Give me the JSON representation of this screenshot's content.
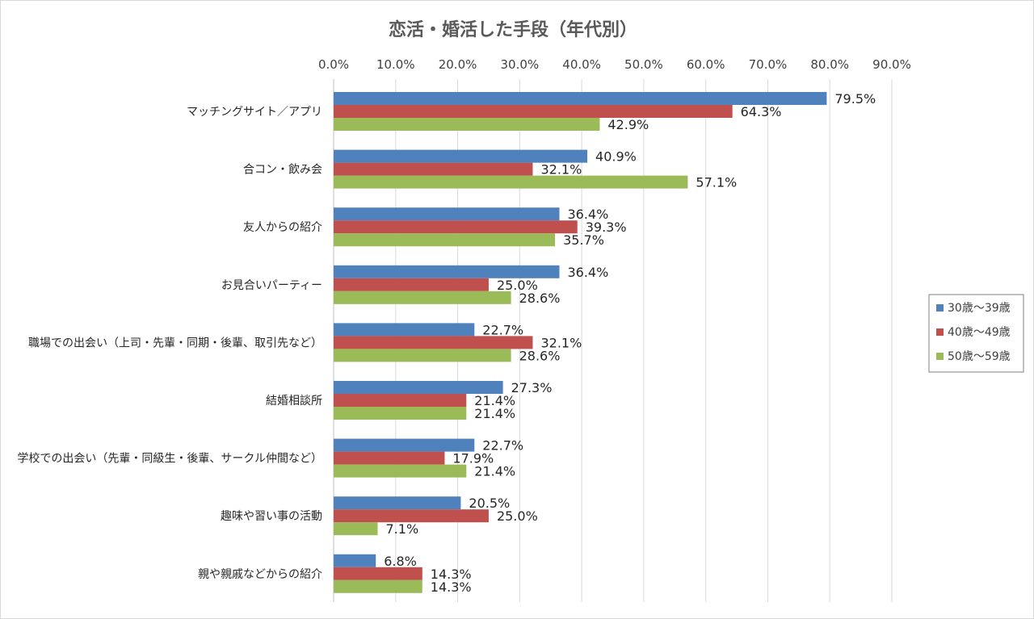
{
  "chart_data": {
    "type": "bar",
    "orientation": "horizontal",
    "title": "恋活・婚活した手段（年代別）",
    "xlabel": "",
    "ylabel": "",
    "xlim": [
      0,
      90
    ],
    "ticks": [
      "0.0%",
      "10.0%",
      "20.0%",
      "30.0%",
      "40.0%",
      "50.0%",
      "60.0%",
      "70.0%",
      "80.0%",
      "90.0%"
    ],
    "grid": "vertical",
    "legend_position": "right",
    "categories": [
      "マッチングサイト／アプリ",
      "合コン・飲み会",
      "友人からの紹介",
      "お見合いパーティー",
      "職場での出会い（上司・先輩・同期・後輩、取引先など）",
      "結婚相談所",
      "学校での出会い（先輩・同級生・後輩、サークル仲間など）",
      "趣味や習い事の活動",
      "親や親戚などからの紹介"
    ],
    "series": [
      {
        "name": "30歳～39歳",
        "color": "#4f81bd",
        "values": [
          79.5,
          40.9,
          36.4,
          36.4,
          22.7,
          27.3,
          22.7,
          20.5,
          6.8
        ],
        "labels": [
          "79.5%",
          "40.9%",
          "36.4%",
          "36.4%",
          "22.7%",
          "27.3%",
          "22.7%",
          "20.5%",
          "6.8%"
        ]
      },
      {
        "name": "40歳～49歳",
        "color": "#c0504d",
        "values": [
          64.3,
          32.1,
          39.3,
          25.0,
          32.1,
          21.4,
          17.9,
          25.0,
          14.3
        ],
        "labels": [
          "64.3%",
          "32.1%",
          "39.3%",
          "25.0%",
          "32.1%",
          "21.4%",
          "17.9%",
          "25.0%",
          "14.3%"
        ]
      },
      {
        "name": "50歳～59歳",
        "color": "#9bbb59",
        "values": [
          42.9,
          57.1,
          35.7,
          28.6,
          28.6,
          21.4,
          21.4,
          7.1,
          14.3
        ],
        "labels": [
          "42.9%",
          "57.1%",
          "35.7%",
          "28.6%",
          "28.6%",
          "21.4%",
          "21.4%",
          "7.1%",
          "14.3%"
        ]
      }
    ]
  }
}
